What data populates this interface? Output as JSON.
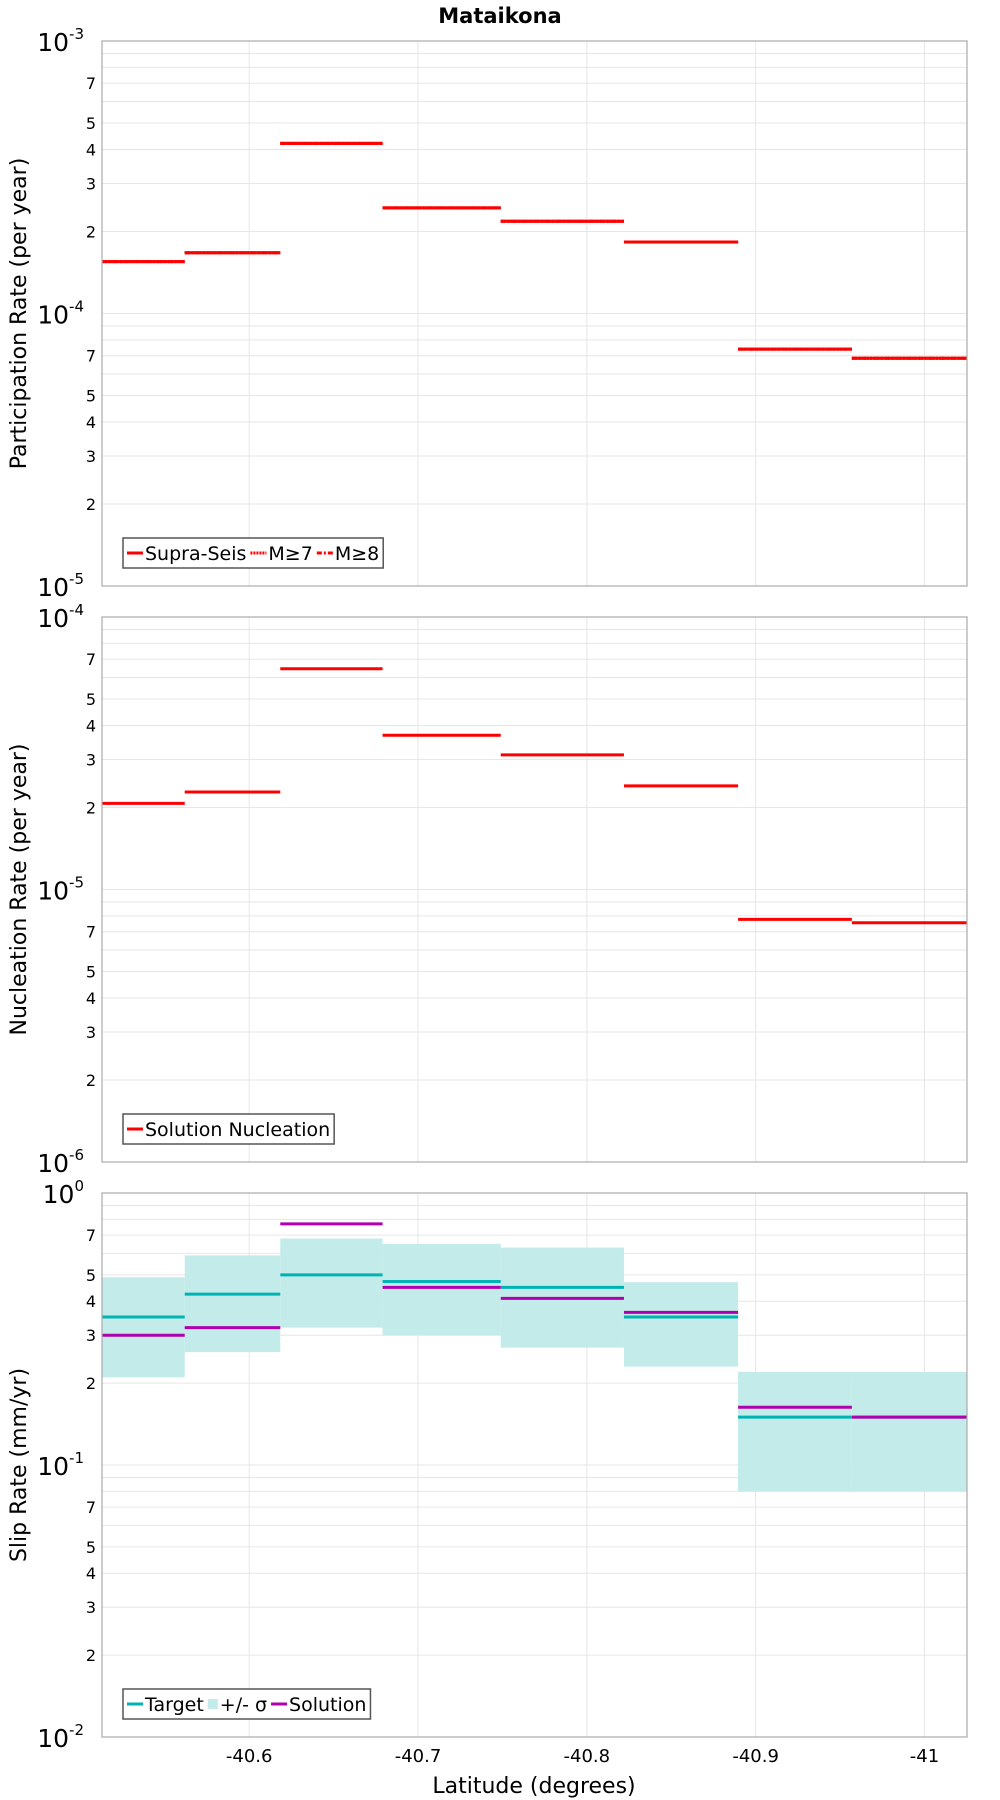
{
  "chart_data": [
    {
      "type": "line",
      "title": "Mataikona",
      "ylabel": "Participation Rate (per year)",
      "xlabel": "",
      "yscale": "log",
      "ylim": [
        1e-05,
        0.001
      ],
      "xlim": [
        -40.5128,
        -41.0252
      ],
      "bin_edges": [
        -40.5128,
        -40.5618,
        -40.6184,
        -40.679,
        -40.749,
        -40.822,
        -40.8896,
        -40.957,
        -41.0252
      ],
      "series": [
        {
          "name": "Supra-Seis",
          "style": "solid",
          "color": "#ff0000",
          "values": [
            0.000155,
            0.000167,
            0.000421,
            0.000244,
            0.000218,
            0.000183,
            7.4e-05,
            6.85e-05
          ]
        },
        {
          "name": "M≥7",
          "style": "dotted",
          "color": "#ff0000",
          "values": [
            0.000155,
            0.000167,
            0.000421,
            0.000244,
            0.000218,
            0.000183,
            7.4e-05,
            6.85e-05
          ]
        },
        {
          "name": "M≥8",
          "style": "dashdot",
          "color": "#ff0000",
          "values": [
            0.000155,
            0.000167,
            0.000421,
            0.000244,
            0.000218,
            0.000183,
            7.4e-05,
            6.85e-05
          ]
        }
      ],
      "legend": "bottom-left",
      "decade_labels": [
        {
          "base": "10",
          "exp": "-3"
        },
        {
          "base": "10",
          "exp": "-4"
        },
        {
          "base": "10",
          "exp": "-5"
        }
      ],
      "minor_labels": [
        "2",
        "3",
        "4",
        "5",
        "7"
      ]
    },
    {
      "type": "line",
      "ylabel": "Nucleation Rate (per year)",
      "yscale": "log",
      "ylim": [
        1e-06,
        0.0001
      ],
      "xlim": [
        -40.5128,
        -41.0252
      ],
      "bin_edges": [
        -40.5128,
        -40.5618,
        -40.6184,
        -40.679,
        -40.749,
        -40.822,
        -40.8896,
        -40.957,
        -41.0252
      ],
      "series": [
        {
          "name": "Solution Nucleation",
          "style": "solid",
          "color": "#ff0000",
          "values": [
            2.07e-05,
            2.28e-05,
            6.46e-05,
            3.68e-05,
            3.12e-05,
            2.4e-05,
            7.77e-06,
            7.55e-06
          ]
        }
      ],
      "legend": "bottom-left",
      "decade_labels": [
        {
          "base": "10",
          "exp": "-4"
        },
        {
          "base": "10",
          "exp": "-5"
        },
        {
          "base": "10",
          "exp": "-6"
        }
      ],
      "minor_labels": [
        "2",
        "3",
        "4",
        "5",
        "7"
      ]
    },
    {
      "type": "line",
      "ylabel": "Slip Rate (mm/yr)",
      "xlabel": "Latitude (degrees)",
      "yscale": "log",
      "ylim": [
        0.01,
        1
      ],
      "xlim": [
        -40.5128,
        -41.0252
      ],
      "xticks": [
        -40.6,
        -40.7,
        -40.8,
        -40.9,
        -41
      ],
      "xtick_labels": [
        "-40.6",
        "-40.7",
        "-40.8",
        "-40.9",
        "-41"
      ],
      "bin_edges": [
        -40.5128,
        -40.5618,
        -40.6184,
        -40.679,
        -40.749,
        -40.822,
        -40.8896,
        -40.957,
        -41.0252
      ],
      "series": [
        {
          "name": "Target",
          "style": "solid",
          "color": "#00b3b3",
          "values": [
            0.35,
            0.425,
            0.5,
            0.473,
            0.45,
            0.35,
            0.15,
            0.15
          ]
        },
        {
          "name": "+/- σ",
          "style": "band",
          "color": "#c2ebea",
          "lower": [
            0.21,
            0.26,
            0.32,
            0.3,
            0.27,
            0.23,
            0.08,
            0.08
          ],
          "upper": [
            0.49,
            0.59,
            0.68,
            0.65,
            0.63,
            0.47,
            0.22,
            0.22
          ]
        },
        {
          "name": "Solution",
          "style": "solid",
          "color": "#b000b0",
          "values": [
            0.3,
            0.32,
            0.77,
            0.45,
            0.41,
            0.364,
            0.163,
            0.15
          ]
        }
      ],
      "legend": "bottom-left",
      "decade_labels": [
        {
          "base": "10",
          "exp": "0"
        },
        {
          "base": "10",
          "exp": "-1"
        },
        {
          "base": "10",
          "exp": "-2"
        }
      ],
      "minor_labels": [
        "2",
        "3",
        "4",
        "5",
        "7"
      ]
    }
  ]
}
